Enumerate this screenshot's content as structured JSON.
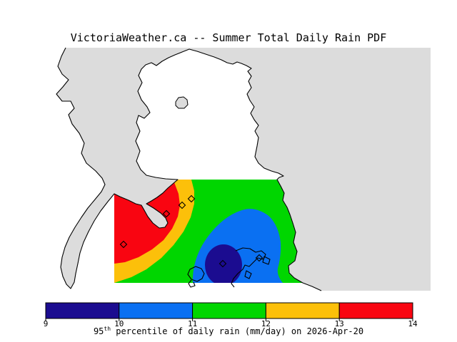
{
  "title": "VictoriaWeather.ca -- Summer Total Daily Rain PDF",
  "legend": {
    "ticks": [
      "9",
      "10",
      "11",
      "12",
      "13",
      "14"
    ],
    "colors": [
      "#1b0c90",
      "#0a70f2",
      "#00d600",
      "#fcc00a",
      "#f90511"
    ],
    "caption_base": "95",
    "caption_sup": "th",
    "caption_rest": " percentile of daily rain (mm/day) on 2026-Apr-20"
  },
  "map": {
    "water_color": "#dcdcdc",
    "land_color": "#ffffff",
    "coastline_color": "#000000",
    "station_markers": [
      [
        173,
        343
      ],
      [
        233,
        300
      ],
      [
        255,
        288
      ],
      [
        268,
        279
      ],
      [
        312,
        370
      ],
      [
        363,
        362
      ]
    ]
  },
  "chart_data": {
    "type": "heatmap",
    "title": "VictoriaWeather.ca -- Summer Total Daily Rain PDF",
    "variable": "95th percentile of daily rain",
    "unit": "mm/day",
    "date": "2026-Apr-20",
    "scale_min": 9,
    "scale_max": 14,
    "legend_ticks": [
      9,
      10,
      11,
      12,
      13,
      14
    ],
    "bands": [
      {
        "range": "9-10",
        "color": "#1b0c90",
        "location": "small core, south-central of mapped field"
      },
      {
        "range": "10-11",
        "color": "#0a70f2",
        "location": "dome over south-east of mapped field"
      },
      {
        "range": "11-12",
        "color": "#00d600",
        "location": "central and eastern mapped field"
      },
      {
        "range": "12-13",
        "color": "#fcc00a",
        "location": "band across western mapped field"
      },
      {
        "range": "13-14",
        "color": "#f90511",
        "location": "north-west corner of mapped field"
      }
    ],
    "station_marker_count": 6,
    "legend_position": "bottom"
  }
}
